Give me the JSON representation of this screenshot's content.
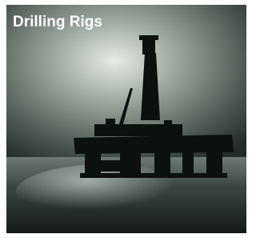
{
  "title": "Drilling Rigs"
}
